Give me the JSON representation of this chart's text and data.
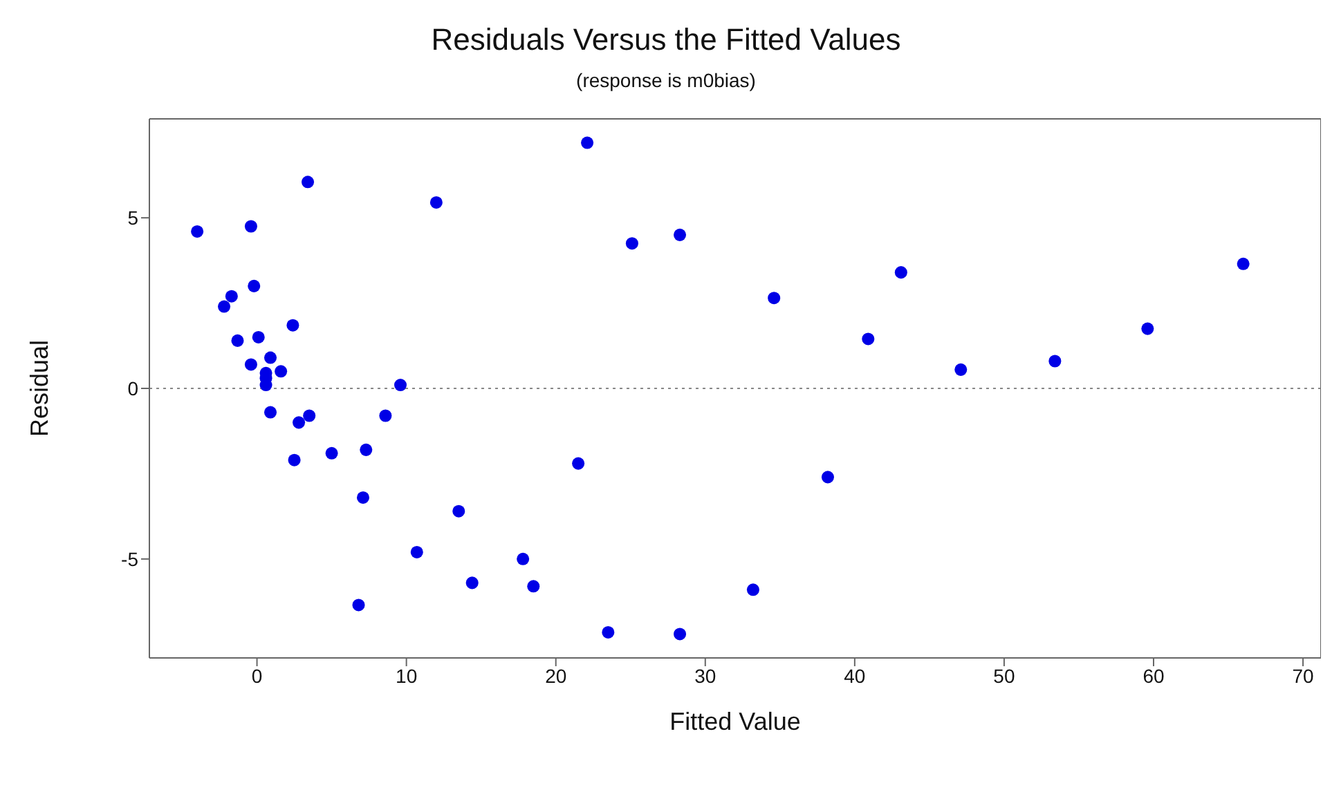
{
  "chart_data": {
    "type": "scatter",
    "title": "Residuals Versus the Fitted Values",
    "subtitle": "(response is m0bias)",
    "xlabel": "Fitted Value",
    "ylabel": "Residual",
    "xlim": [
      -7.2,
      71.2
    ],
    "xticks": [
      0,
      10,
      20,
      30,
      40,
      50,
      60,
      70
    ],
    "ylim": [
      -7.9,
      7.9
    ],
    "yticks": [
      -5,
      0,
      5
    ],
    "grid": false,
    "legend": false,
    "marker": "circle",
    "ref_lines": [
      {
        "axis": "y",
        "value": 0,
        "color": "#888888",
        "line_style": "dotted"
      }
    ],
    "series": [
      {
        "color": "#0000e6",
        "x": [
          -4.0,
          -0.4,
          -0.2,
          -1.7,
          -2.2,
          0.1,
          -1.3,
          2.4,
          3.4,
          -0.4,
          0.9,
          0.6,
          0.6,
          0.6,
          1.6,
          0.9,
          2.8,
          3.5,
          2.5,
          5.0,
          7.3,
          7.1,
          8.6,
          9.6,
          6.8,
          10.7,
          12.0,
          13.5,
          14.4,
          17.8,
          18.5,
          21.5,
          22.1,
          23.5,
          25.1,
          28.3,
          28.3,
          33.2,
          34.6,
          38.2,
          40.9,
          43.1,
          47.1,
          53.4,
          59.6,
          66.0
        ],
        "values": [
          4.6,
          4.75,
          3.0,
          2.7,
          2.4,
          1.5,
          1.4,
          1.85,
          6.05,
          0.7,
          0.9,
          0.45,
          0.3,
          0.1,
          0.5,
          -0.7,
          -1.0,
          -0.8,
          -2.1,
          -1.9,
          -1.8,
          -3.2,
          -0.8,
          0.1,
          -6.35,
          -4.8,
          5.45,
          -3.6,
          -5.7,
          -5.0,
          -5.8,
          -2.2,
          7.2,
          -7.15,
          4.25,
          4.5,
          -7.2,
          -5.9,
          2.65,
          -2.6,
          1.45,
          3.4,
          0.55,
          0.8,
          1.75,
          3.65
        ]
      }
    ]
  }
}
